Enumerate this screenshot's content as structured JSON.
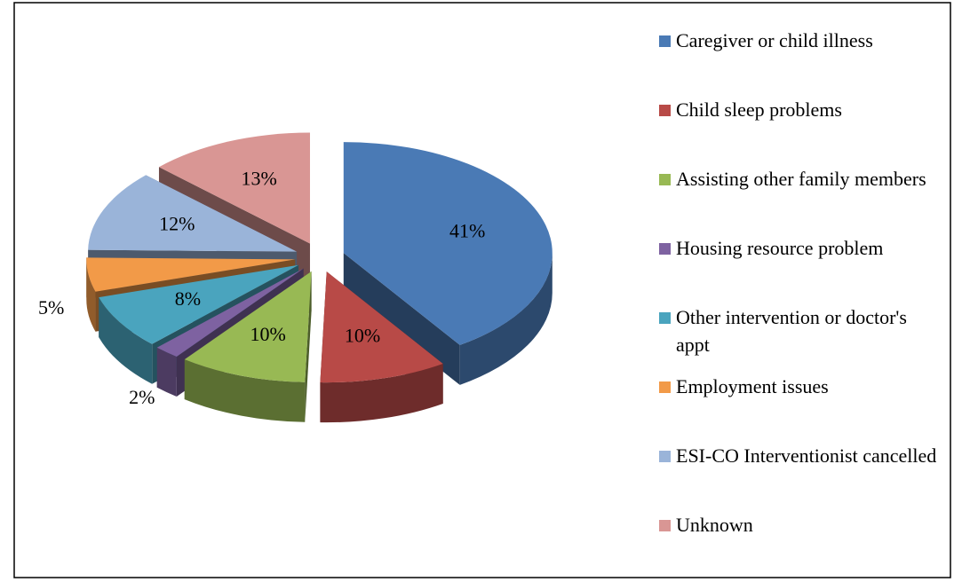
{
  "chart_data": {
    "type": "pie3d",
    "categories": [
      "Caregiver or child illness",
      "Child sleep problems",
      "Assisting other family members",
      "Housing resource problem",
      "Other intervention or doctor's appt",
      "Employment issues",
      "ESI-CO Interventionist cancelled",
      "Unknown"
    ],
    "values": [
      41,
      10,
      10,
      2,
      8,
      5,
      12,
      13
    ],
    "value_labels": [
      "41%",
      "10%",
      "10%",
      "2%",
      "8%",
      "5%",
      "12%",
      "13%"
    ],
    "colors": [
      "#4a7ab5",
      "#b84a47",
      "#98b954",
      "#7e62a1",
      "#4aa4be",
      "#f29a48",
      "#9ab4d9",
      "#d99694"
    ],
    "legend": "right"
  }
}
